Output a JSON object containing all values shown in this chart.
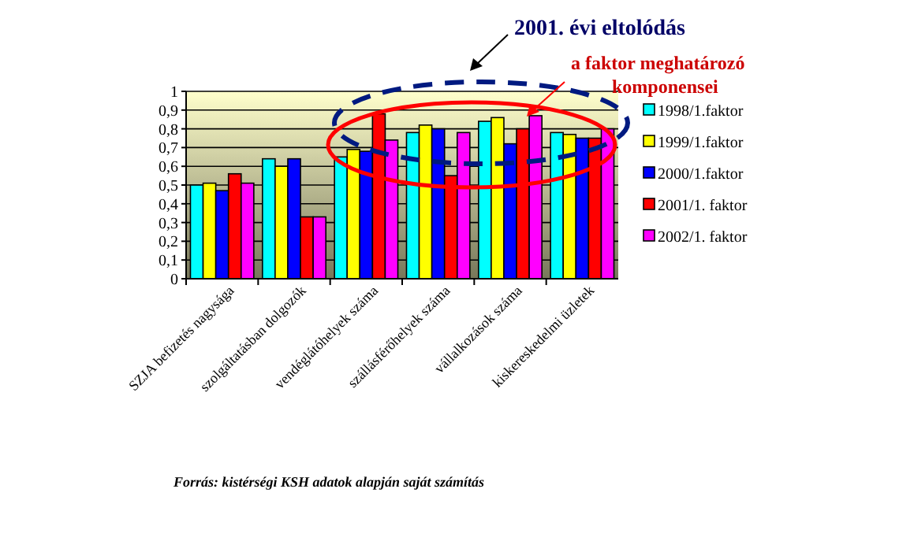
{
  "chart_data": {
    "type": "bar",
    "categories": [
      "SZJA befizetés nagysága",
      "szolgáltatásban dolgozók",
      "vendéglátóhelyek száma",
      "szállásférőhelyek száma",
      "vállalkozások száma",
      "kiskereskedelmi üzletek"
    ],
    "series": [
      {
        "name": "1998/1.faktor",
        "color": "#00ffff",
        "values": [
          0.5,
          0.64,
          0.65,
          0.78,
          0.84,
          0.78
        ]
      },
      {
        "name": "1999/1.faktor",
        "color": "#ffff00",
        "values": [
          0.51,
          0.6,
          0.69,
          0.82,
          0.86,
          0.77
        ]
      },
      {
        "name": "2000/1.faktor",
        "color": "#0000ff",
        "values": [
          0.47,
          0.64,
          0.68,
          0.8,
          0.72,
          0.75
        ]
      },
      {
        "name": "2001/1. faktor",
        "color": "#ff0000",
        "values": [
          0.56,
          0.33,
          0.88,
          0.55,
          0.8,
          0.75
        ]
      },
      {
        "name": "2002/1. faktor",
        "color": "#ff00ff",
        "values": [
          0.51,
          0.33,
          0.74,
          0.78,
          0.87,
          0.8
        ]
      }
    ],
    "ylim": [
      0,
      1
    ],
    "yticks": [
      0,
      {
        "value": 0.1,
        "label": "0,1"
      },
      {
        "value": 0.2,
        "label": "0,2"
      },
      {
        "value": 0.3,
        "label": "0,3"
      },
      {
        "value": 0.4,
        "label": "0,4"
      },
      {
        "value": 0.5,
        "label": "0,5"
      },
      {
        "value": 0.6,
        "label": "0,6"
      },
      {
        "value": 0.7,
        "label": "0,7"
      },
      {
        "value": 0.8,
        "label": "0,8"
      },
      {
        "value": 0.9,
        "label": "0,9"
      },
      1
    ],
    "grid": "y",
    "legend": "right",
    "annotations": [
      "2001. évi eltolódás",
      "a faktor meghatározó komponensei",
      "Forrás: kistérségi KSH adatok alapján saját számítás"
    ]
  }
}
